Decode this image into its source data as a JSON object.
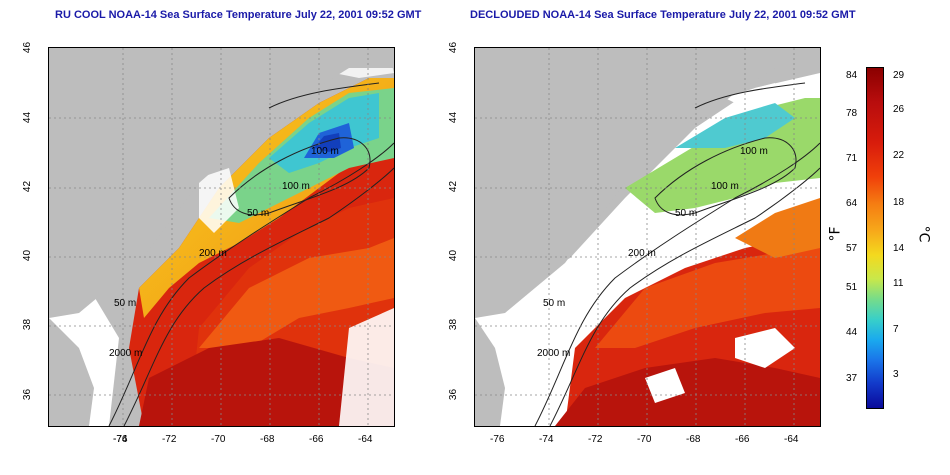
{
  "left_panel": {
    "title": "RU COOL NOAA-14 Sea Surface Temperature July 22, 2001 09:52 GMT",
    "contour_labels": [
      "100 m",
      "100 m",
      "50 m",
      "200 m",
      "50 m",
      "2000 m"
    ]
  },
  "right_panel": {
    "title": "DECLOUDED NOAA-14 Sea Surface Temperature July 22, 2001 09:52 GMT",
    "contour_labels": [
      "100 m",
      "100 m",
      "50 m",
      "200 m",
      "50 m",
      "2000 m"
    ]
  },
  "axes": {
    "x_ticks": [
      "-76",
      "-74",
      "-72",
      "-70",
      "-68",
      "-66",
      "-64"
    ],
    "y_ticks": [
      "46",
      "44",
      "42",
      "40",
      "38",
      "36"
    ]
  },
  "colorbar": {
    "fahrenheit_ticks": [
      "84",
      "78",
      "71",
      "64",
      "57",
      "51",
      "44",
      "37"
    ],
    "celsius_ticks": [
      "29",
      "26",
      "22",
      "18",
      "14",
      "11",
      "7",
      "3"
    ],
    "left_unit": "°F",
    "right_unit": "°C"
  },
  "colors": {
    "land": "#bdbdbd",
    "cloud": "#ffffff",
    "warm": "#d41c0c",
    "cold": "#1a3ac8",
    "title": "#1a1aa8"
  }
}
